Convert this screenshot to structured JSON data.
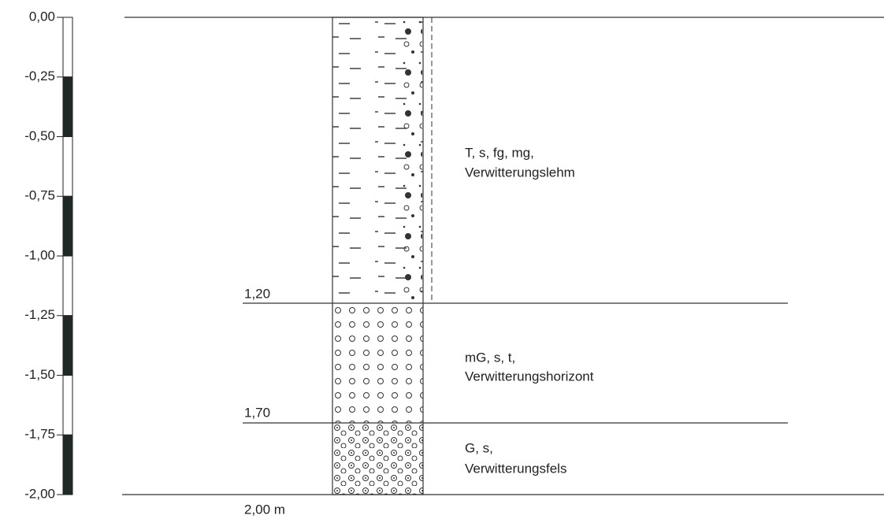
{
  "scale": {
    "ticks": [
      "0,00",
      "-0,25",
      "-0,50",
      "-0,75",
      "-1,00",
      "-1,25",
      "-1,50",
      "-1,75",
      "-2,00"
    ]
  },
  "layers": [
    {
      "depth_label": "1,20",
      "description": [
        "T, s, fg, mg,",
        "Verwitterungslehm"
      ]
    },
    {
      "depth_label": "1,70",
      "description": [
        "mG, s, t,",
        "Verwitterungshorizont"
      ]
    },
    {
      "depth_label": "2,00 m",
      "description": [
        "G, s,",
        "Verwitterungsfels"
      ]
    }
  ]
}
